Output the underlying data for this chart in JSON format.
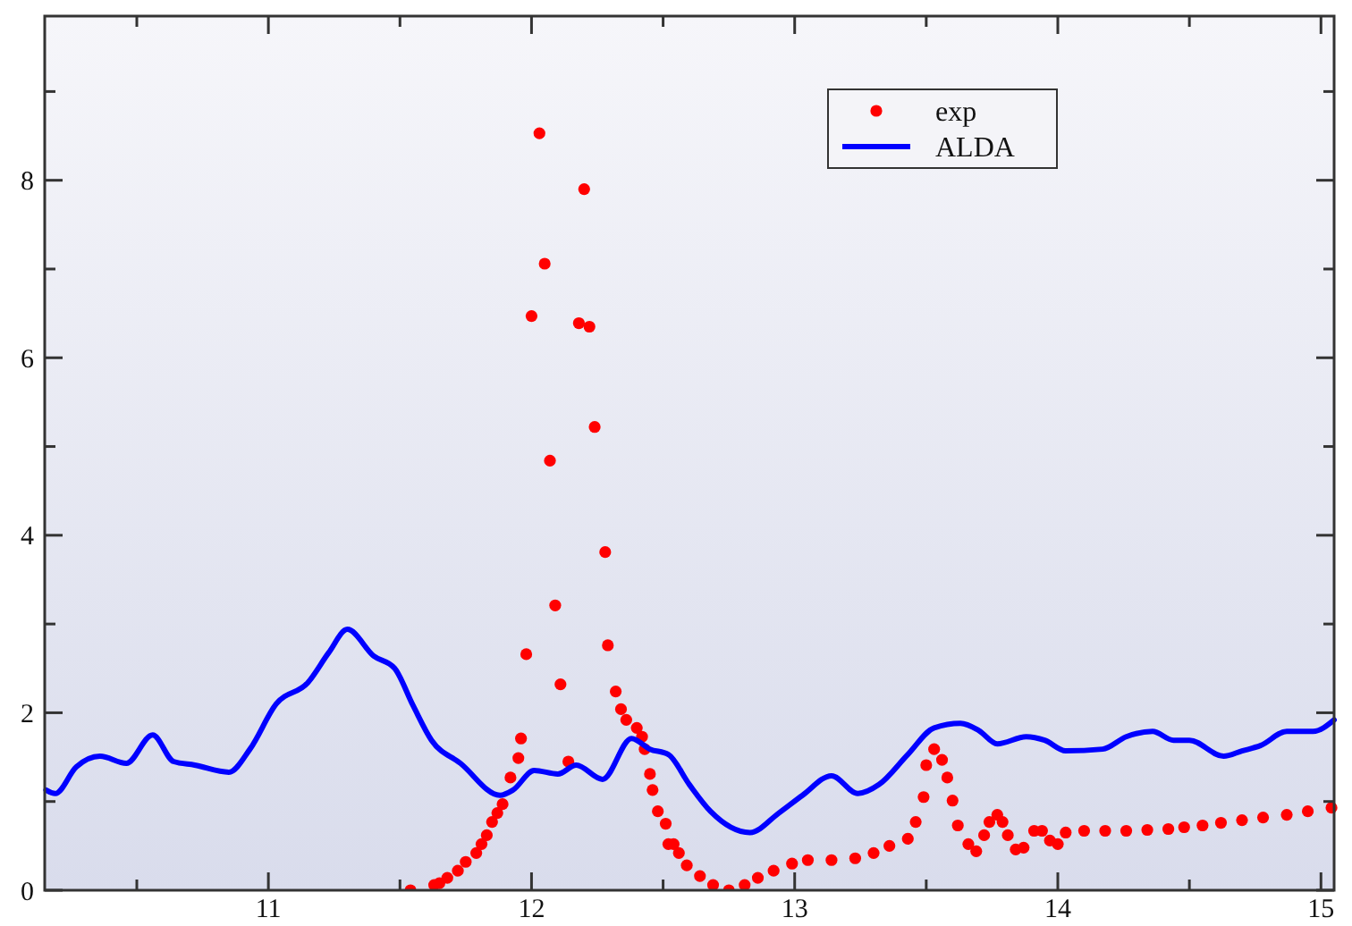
{
  "chart_data": {
    "type": "line",
    "xlim": [
      10.15,
      15.05
    ],
    "ylim": [
      0,
      9.85
    ],
    "xticks": [
      {
        "value": 10.5,
        "label": null
      },
      11,
      {
        "value": 11.5,
        "label": null
      },
      12,
      {
        "value": 12.5,
        "label": null
      },
      13,
      {
        "value": 13.5,
        "label": null
      },
      14,
      {
        "value": 14.5,
        "label": null
      },
      15
    ],
    "yticks": [
      0,
      {
        "value": 1,
        "label": null
      },
      2,
      {
        "value": 3,
        "label": null
      },
      4,
      {
        "value": 5,
        "label": null
      },
      6,
      {
        "value": 7,
        "label": null
      },
      8,
      {
        "value": 9,
        "label": null
      }
    ],
    "grid": false,
    "legend": "top right",
    "series": [
      {
        "name": "exp",
        "type": "scatter",
        "marker": "circle",
        "color": "#ff0000",
        "x": [
          11.54,
          11.63,
          11.65,
          11.68,
          11.72,
          11.75,
          11.79,
          11.81,
          11.83,
          11.85,
          11.87,
          11.89,
          11.92,
          11.95,
          11.96,
          11.98,
          12.0,
          12.03,
          12.05,
          12.07,
          12.09,
          12.11,
          12.14,
          12.18,
          12.2,
          12.22,
          12.24,
          12.28,
          12.29,
          12.32,
          12.34,
          12.36,
          12.4,
          12.42,
          12.43,
          12.45,
          12.46,
          12.48,
          12.51,
          12.52,
          12.54,
          12.56,
          12.59,
          12.64,
          12.69,
          12.75,
          12.81,
          12.86,
          12.92,
          12.99,
          13.05,
          13.14,
          13.23,
          13.3,
          13.36,
          13.43,
          13.46,
          13.49,
          13.5,
          13.53,
          13.56,
          13.58,
          13.6,
          13.62,
          13.66,
          13.69,
          13.72,
          13.74,
          13.77,
          13.79,
          13.81,
          13.84,
          13.87,
          13.91,
          13.94,
          13.97,
          14.0,
          14.03,
          14.1,
          14.18,
          14.26,
          14.34,
          14.42,
          14.48,
          14.55,
          14.62,
          14.7,
          14.78,
          14.87,
          14.95,
          15.04
        ],
        "values": [
          0,
          0.06,
          0.08,
          0.14,
          0.22,
          0.32,
          0.42,
          0.52,
          0.62,
          0.77,
          0.87,
          0.97,
          1.27,
          1.49,
          1.71,
          2.66,
          6.47,
          8.53,
          7.06,
          4.84,
          3.21,
          2.32,
          1.45,
          6.39,
          7.9,
          6.35,
          5.22,
          3.81,
          2.76,
          2.24,
          2.04,
          1.92,
          1.83,
          1.73,
          1.59,
          1.31,
          1.13,
          0.89,
          0.75,
          0.52,
          0.52,
          0.42,
          0.28,
          0.16,
          0.06,
          0,
          0.06,
          0.14,
          0.22,
          0.3,
          0.34,
          0.34,
          0.36,
          0.42,
          0.5,
          0.58,
          0.77,
          1.05,
          1.41,
          1.59,
          1.47,
          1.27,
          1.01,
          0.73,
          0.52,
          0.44,
          0.62,
          0.77,
          0.85,
          0.77,
          0.62,
          0.46,
          0.48,
          0.67,
          0.67,
          0.56,
          0.52,
          0.65,
          0.67,
          0.67,
          0.67,
          0.68,
          0.69,
          0.71,
          0.73,
          0.76,
          0.79,
          0.82,
          0.85,
          0.89,
          0.93
        ]
      },
      {
        "name": "ALDA",
        "type": "line",
        "marker": "none",
        "line_style": "solid",
        "color": "#0000ff",
        "x": [
          10.155,
          10.19,
          10.27,
          10.36,
          10.46,
          10.56,
          10.64,
          10.72,
          10.85,
          10.93,
          11.03,
          11.15,
          11.23,
          11.3,
          11.4,
          11.48,
          11.55,
          11.62,
          11.73,
          11.88,
          11.93,
          12.01,
          12.1,
          12.17,
          12.27,
          12.38,
          12.45,
          12.52,
          12.6,
          12.68,
          12.83,
          12.94,
          13.03,
          13.14,
          13.24,
          13.32,
          13.43,
          13.53,
          13.63,
          13.7,
          13.77,
          13.88,
          13.95,
          14.03,
          14.17,
          14.26,
          14.36,
          14.44,
          14.5,
          14.63,
          14.7,
          14.77,
          14.87,
          14.97,
          15.05
        ],
        "values": [
          1.13,
          1.09,
          1.39,
          1.51,
          1.43,
          1.75,
          1.45,
          1.41,
          1.33,
          1.59,
          2.1,
          2.34,
          2.68,
          2.94,
          2.64,
          2.5,
          2.08,
          1.69,
          1.43,
          1.07,
          1.13,
          1.35,
          1.31,
          1.41,
          1.25,
          1.71,
          1.59,
          1.53,
          1.19,
          0.89,
          0.65,
          0.87,
          1.07,
          1.29,
          1.09,
          1.19,
          1.53,
          1.83,
          1.88,
          1.8,
          1.65,
          1.73,
          1.69,
          1.57,
          1.59,
          1.73,
          1.79,
          1.69,
          1.69,
          1.51,
          1.57,
          1.63,
          1.79,
          1.79,
          1.92
        ]
      }
    ]
  }
}
